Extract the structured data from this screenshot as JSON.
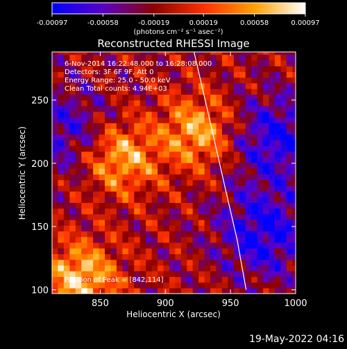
{
  "chart_data": {
    "type": "heatmap",
    "title": "Reconstructed RHESSI Image",
    "xlabel": "Heliocentric X (arcsec)",
    "ylabel": "Heliocentric Y (arcsec)",
    "xlim": [
      813,
      1000
    ],
    "ylim": [
      97,
      288
    ],
    "x_ticks": [
      850,
      900,
      950,
      1000
    ],
    "y_ticks": [
      100,
      150,
      200,
      250
    ],
    "colorbar": {
      "min": -0.00097,
      "max": 0.00097,
      "tick_values": [
        -0.00097,
        -0.00058,
        -0.00019,
        0.00019,
        0.00058,
        0.00097
      ],
      "tick_labels": [
        "-0.00097",
        "-0.00058",
        "-0.00019",
        "0.00019",
        "0.00058",
        "0.00097"
      ],
      "units": "(photons cm⁻² s⁻¹ asec⁻²)",
      "colors": [
        "#0000ff",
        "#5a00c8",
        "#8c0000",
        "#ff3000",
        "#ffa000",
        "#ffffff"
      ]
    },
    "annotations": [
      "6-Nov-2014 16:22:48.000 to 16:28:08.000",
      "Detectors: 3F 6F 9F, Att 0",
      "Energy Range: 25.0 - 50.0 keV",
      "Clean    Total counts: 4.94E+03"
    ],
    "peak_label": "Position of Peak = [842,114]",
    "peak_position": [
      842,
      114
    ],
    "limb_curve": [
      [
        922,
        288
      ],
      [
        935,
        230
      ],
      [
        946,
        180
      ],
      [
        955,
        140
      ],
      [
        962,
        100
      ]
    ],
    "bright_regions": [
      {
        "x": 865,
        "y": 205,
        "level": 0.85
      },
      {
        "x": 835,
        "y": 110,
        "level": 0.9
      },
      {
        "x": 925,
        "y": 225,
        "level": 0.8
      }
    ],
    "dim_regions": [
      {
        "x": 985,
        "y": 220,
        "level": -0.7
      },
      {
        "x": 975,
        "y": 145,
        "level": -0.75
      },
      {
        "x": 825,
        "y": 225,
        "level": -0.55
      }
    ]
  },
  "footer": {
    "timestamp": "19-May-2022 04:16"
  }
}
